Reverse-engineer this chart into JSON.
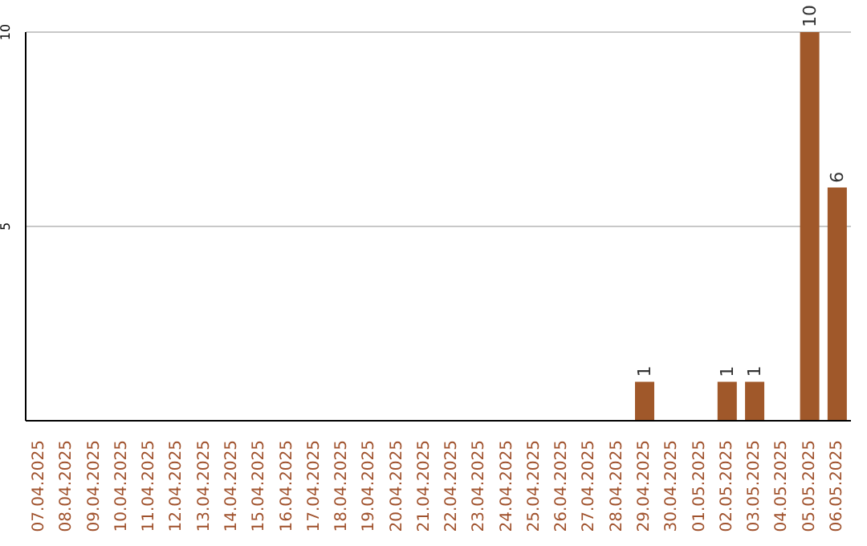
{
  "chart_data": {
    "type": "bar",
    "categories": [
      "07.04.2025",
      "08.04.2025",
      "09.04.2025",
      "10.04.2025",
      "11.04.2025",
      "12.04.2025",
      "13.04.2025",
      "14.04.2025",
      "15.04.2025",
      "16.04.2025",
      "17.04.2025",
      "18.04.2025",
      "19.04.2025",
      "20.04.2025",
      "21.04.2025",
      "22.04.2025",
      "23.04.2025",
      "24.04.2025",
      "25.04.2025",
      "26.04.2025",
      "27.04.2025",
      "28.04.2025",
      "29.04.2025",
      "30.04.2025",
      "01.05.2025",
      "02.05.2025",
      "03.05.2025",
      "04.05.2025",
      "05.05.2025",
      "06.05.2025"
    ],
    "values": [
      0,
      0,
      0,
      0,
      0,
      0,
      0,
      0,
      0,
      0,
      0,
      0,
      0,
      0,
      0,
      0,
      0,
      0,
      0,
      0,
      0,
      0,
      1,
      0,
      0,
      1,
      1,
      0,
      10,
      6
    ],
    "value_labels": [
      null,
      null,
      null,
      null,
      null,
      null,
      null,
      null,
      null,
      null,
      null,
      null,
      null,
      null,
      null,
      null,
      null,
      null,
      null,
      null,
      null,
      null,
      "1",
      null,
      null,
      "1",
      "1",
      null,
      "10",
      "6"
    ],
    "color": "#a0582a",
    "ylim": [
      0,
      10
    ],
    "yticks": [
      5,
      10
    ],
    "grid": "y"
  }
}
